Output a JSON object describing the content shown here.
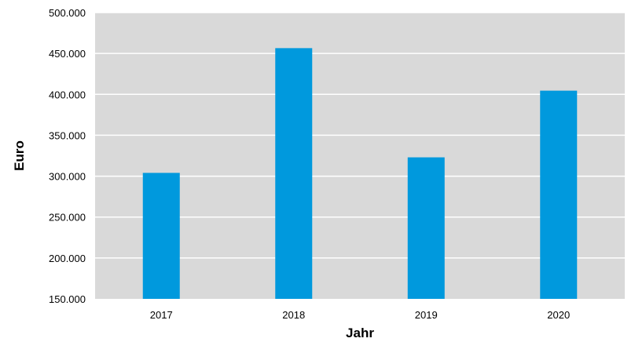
{
  "chart_data": {
    "type": "bar",
    "categories": [
      "2017",
      "2018",
      "2019",
      "2020"
    ],
    "values": [
      304000,
      456500,
      323000,
      404500
    ],
    "xlabel": "Jahr",
    "ylabel": "Euro",
    "ylim": [
      150000,
      500000
    ],
    "yticks": [
      150000,
      200000,
      250000,
      300000,
      350000,
      400000,
      450000,
      500000
    ],
    "ytick_labels": [
      "150.000",
      "200.000",
      "250.000",
      "300.000",
      "350.000",
      "400.000",
      "450.000",
      "500.000"
    ],
    "grid": true,
    "legend": "none",
    "colors": {
      "bar": "#0099DD",
      "plot_background": "#D9D9D9",
      "gridline": "#FFFFFF"
    }
  }
}
